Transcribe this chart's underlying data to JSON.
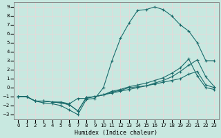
{
  "xlabel": "Humidex (Indice chaleur)",
  "bg_color": "#c8e8e0",
  "grid_color": "#e8d8d8",
  "line_color": "#1a6b6b",
  "xlim": [
    -0.5,
    23.5
  ],
  "ylim": [
    -3.5,
    9.5
  ],
  "xticks": [
    0,
    1,
    2,
    3,
    4,
    5,
    6,
    7,
    8,
    9,
    10,
    11,
    12,
    13,
    14,
    15,
    16,
    17,
    18,
    19,
    20,
    21,
    22,
    23
  ],
  "yticks": [
    -3,
    -2,
    -1,
    0,
    1,
    2,
    3,
    4,
    5,
    6,
    7,
    8,
    9
  ],
  "line1_x": [
    0,
    1,
    2,
    3,
    4,
    5,
    6,
    7,
    8,
    9,
    10,
    11,
    12,
    13,
    14,
    15,
    16,
    17,
    18,
    19,
    20,
    21,
    22,
    23
  ],
  "line1_y": [
    -1,
    -1,
    -1.5,
    -1.7,
    -1.8,
    -2.0,
    -2.5,
    -3.0,
    -1.3,
    -1.2,
    0.0,
    3.0,
    5.5,
    7.2,
    8.6,
    8.7,
    9.0,
    8.7,
    8.0,
    7.0,
    6.3,
    5.0,
    3.0,
    3.0
  ],
  "line2_x": [
    0,
    1,
    2,
    3,
    4,
    5,
    6,
    7,
    8,
    9,
    10,
    11,
    12,
    13,
    14,
    15,
    16,
    17,
    18,
    19,
    20,
    21,
    22,
    23
  ],
  "line2_y": [
    -1,
    -1,
    -1.5,
    -1.5,
    -1.6,
    -1.6,
    -1.8,
    -1.2,
    -1.2,
    -1.0,
    -0.8,
    -0.6,
    -0.4,
    -0.2,
    0.0,
    0.2,
    0.4,
    0.6,
    0.8,
    1.0,
    1.5,
    1.8,
    0.3,
    0.0
  ],
  "line3_x": [
    0,
    1,
    2,
    3,
    4,
    5,
    6,
    7,
    8,
    9,
    10,
    11,
    12,
    13,
    14,
    15,
    16,
    17,
    18,
    19,
    20,
    21,
    22,
    23
  ],
  "line3_y": [
    -1,
    -1,
    -1.5,
    -1.5,
    -1.6,
    -1.7,
    -1.9,
    -2.6,
    -1.1,
    -1.0,
    -0.8,
    -0.5,
    -0.3,
    0.0,
    0.1,
    0.2,
    0.5,
    0.8,
    1.2,
    1.8,
    2.5,
    3.1,
    1.2,
    0.1
  ],
  "line4_x": [
    0,
    1,
    2,
    3,
    4,
    5,
    6,
    7,
    8,
    9,
    10,
    11,
    12,
    13,
    14,
    15,
    16,
    17,
    18,
    19,
    20,
    21,
    22,
    23
  ],
  "line4_y": [
    -1,
    -1,
    -1.5,
    -1.5,
    -1.6,
    -1.7,
    -1.9,
    -2.6,
    -1.1,
    -1.0,
    -0.8,
    -0.4,
    -0.2,
    0.1,
    0.3,
    0.5,
    0.8,
    1.1,
    1.6,
    2.2,
    3.2,
    1.3,
    0.0,
    -0.2
  ]
}
